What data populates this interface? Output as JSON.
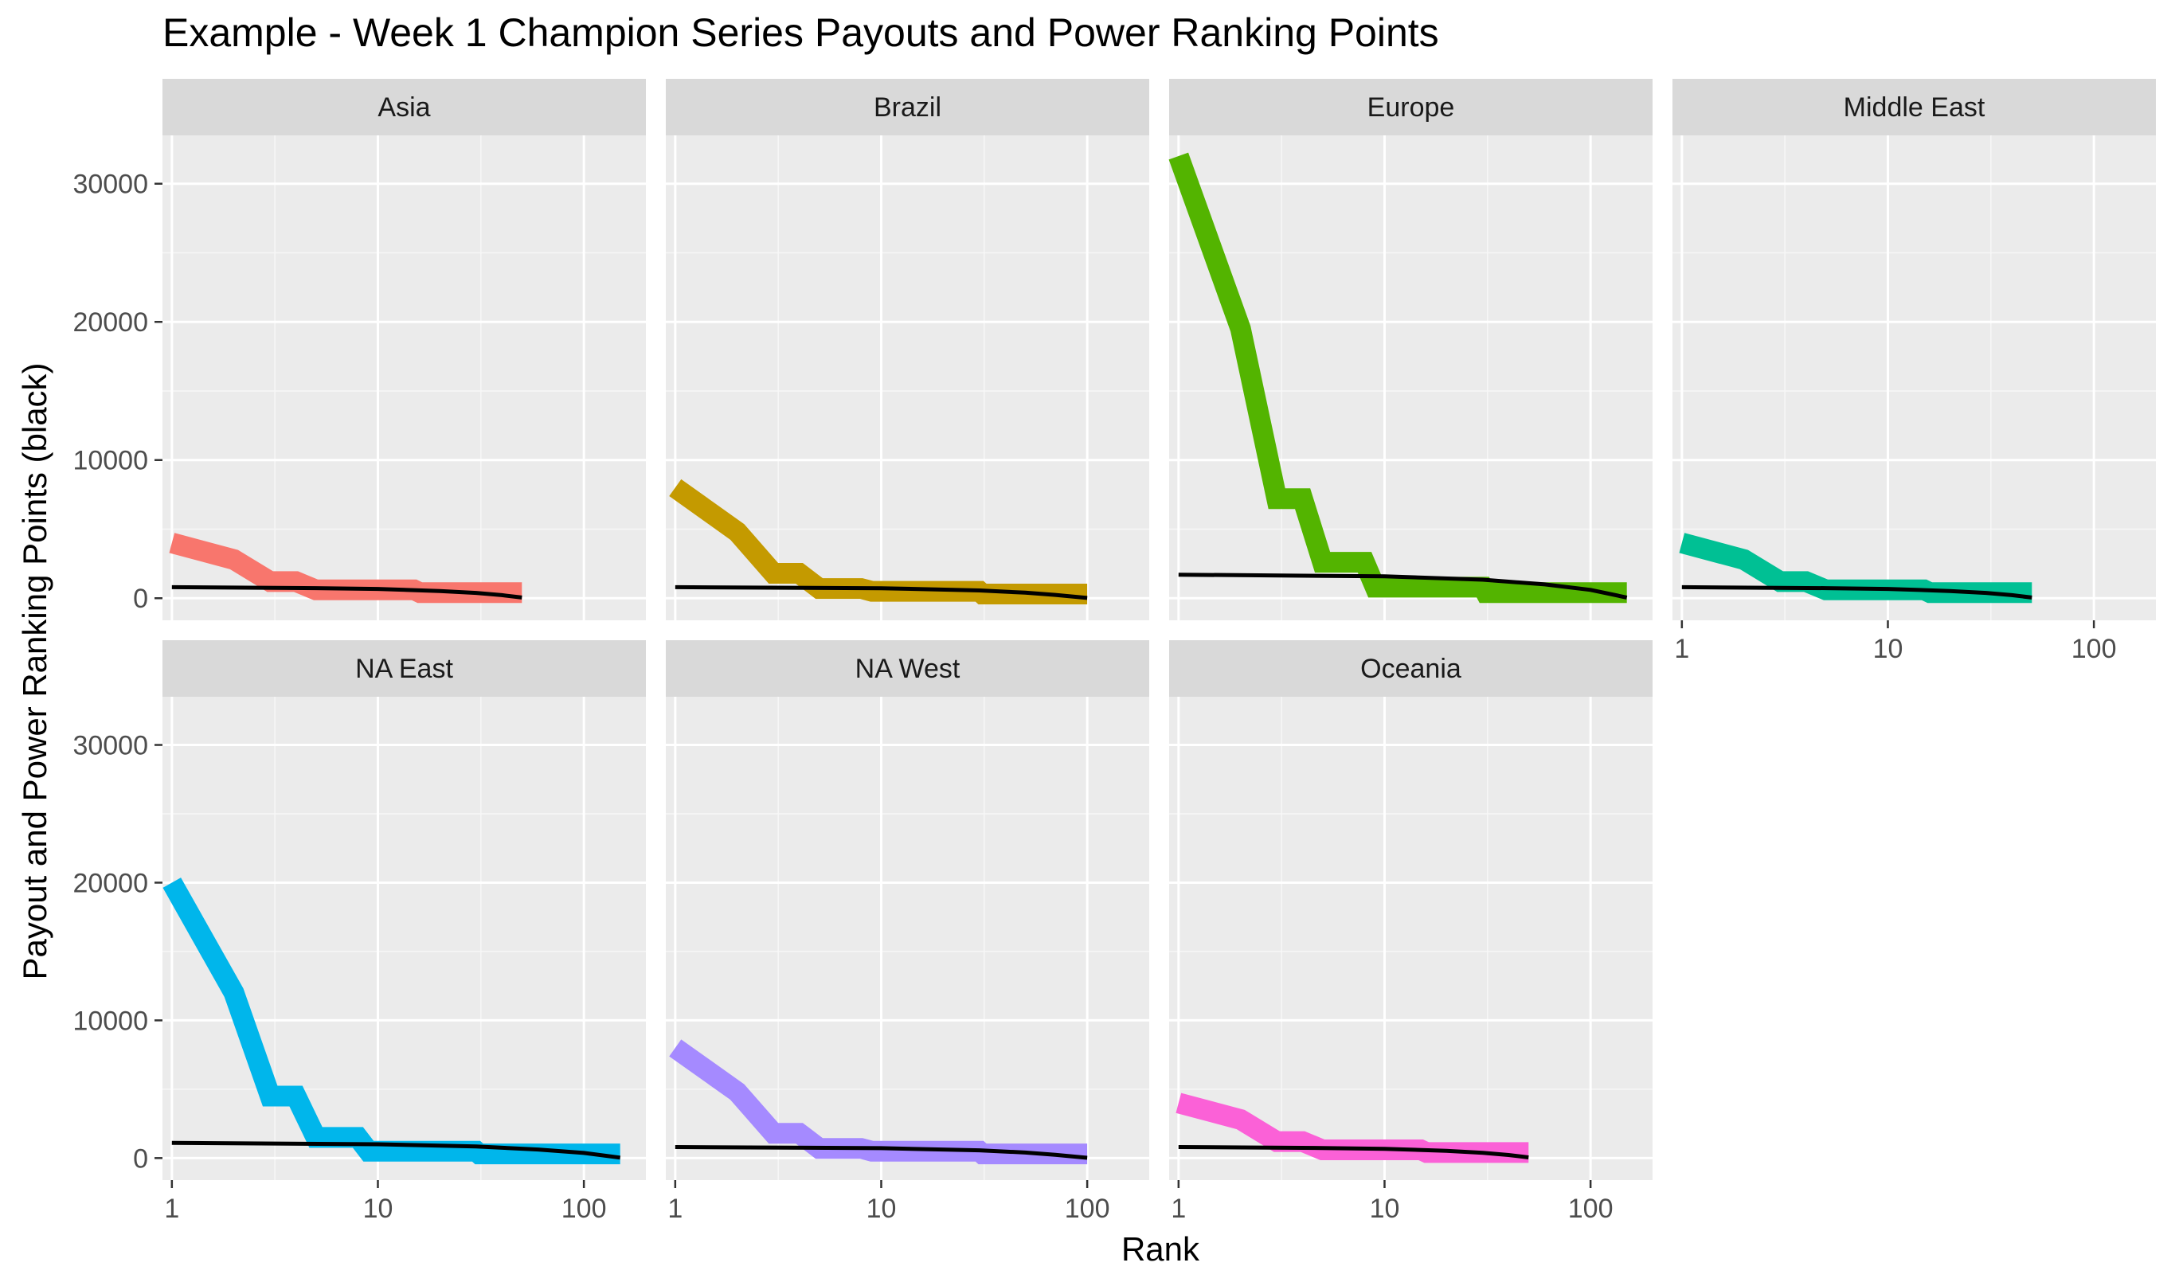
{
  "chart_data": {
    "type": "line",
    "title": "Example - Week 1 Champion Series Payouts and Power Ranking Points",
    "xlabel": "Rank",
    "ylabel": "Payout and Power Ranking Points (black)",
    "x_scale": "log10",
    "xlim": [
      0.9,
      200
    ],
    "ylim": [
      -1600,
      33500
    ],
    "x_ticks": [
      1,
      10,
      100
    ],
    "x_tick_labels": [
      "1",
      "10",
      "100"
    ],
    "y_ticks": [
      0,
      10000,
      20000,
      30000
    ],
    "y_tick_labels": [
      "0",
      "10000",
      "20000",
      "30000"
    ],
    "grid": true,
    "legend": "none",
    "points_series_color": "#000000",
    "panels": [
      {
        "name": "Asia",
        "color": "#F8766D",
        "payout": [
          [
            1,
            4000
          ],
          [
            2,
            2800
          ],
          [
            3,
            1200
          ],
          [
            4,
            1200
          ],
          [
            5,
            600
          ],
          [
            15,
            600
          ],
          [
            16,
            400
          ],
          [
            50,
            400
          ]
        ],
        "points": [
          [
            1,
            800
          ],
          [
            5,
            730
          ],
          [
            10,
            670
          ],
          [
            20,
            520
          ],
          [
            30,
            380
          ],
          [
            40,
            220
          ],
          [
            50,
            50
          ]
        ]
      },
      {
        "name": "Brazil",
        "color": "#C49A00",
        "payout": [
          [
            1,
            8000
          ],
          [
            2,
            4800
          ],
          [
            3,
            1800
          ],
          [
            4,
            1800
          ],
          [
            5,
            700
          ],
          [
            8,
            700
          ],
          [
            9,
            500
          ],
          [
            30,
            500
          ],
          [
            31,
            300
          ],
          [
            100,
            300
          ]
        ],
        "points": [
          [
            1,
            800
          ],
          [
            10,
            720
          ],
          [
            30,
            560
          ],
          [
            50,
            400
          ],
          [
            70,
            240
          ],
          [
            100,
            20
          ]
        ]
      },
      {
        "name": "Europe",
        "color": "#53B400",
        "payout": [
          [
            1,
            32000
          ],
          [
            2,
            19500
          ],
          [
            3,
            7200
          ],
          [
            4,
            7200
          ],
          [
            5,
            2600
          ],
          [
            8,
            2600
          ],
          [
            9,
            800
          ],
          [
            30,
            800
          ],
          [
            31,
            400
          ],
          [
            150,
            400
          ]
        ],
        "points": [
          [
            1,
            1700
          ],
          [
            10,
            1580
          ],
          [
            30,
            1340
          ],
          [
            60,
            1000
          ],
          [
            100,
            600
          ],
          [
            150,
            50
          ]
        ]
      },
      {
        "name": "Middle East",
        "color": "#00C094",
        "payout": [
          [
            1,
            4000
          ],
          [
            2,
            2800
          ],
          [
            3,
            1200
          ],
          [
            4,
            1200
          ],
          [
            5,
            600
          ],
          [
            15,
            600
          ],
          [
            16,
            400
          ],
          [
            50,
            400
          ]
        ],
        "points": [
          [
            1,
            800
          ],
          [
            5,
            730
          ],
          [
            10,
            670
          ],
          [
            20,
            520
          ],
          [
            30,
            380
          ],
          [
            40,
            220
          ],
          [
            50,
            50
          ]
        ]
      },
      {
        "name": "NA East",
        "color": "#00B6EB",
        "payout": [
          [
            1,
            20000
          ],
          [
            2,
            12000
          ],
          [
            3,
            4500
          ],
          [
            4,
            4500
          ],
          [
            5,
            1500
          ],
          [
            8,
            1500
          ],
          [
            9,
            500
          ],
          [
            30,
            500
          ],
          [
            31,
            300
          ],
          [
            150,
            300
          ]
        ],
        "points": [
          [
            1,
            1100
          ],
          [
            10,
            1000
          ],
          [
            30,
            840
          ],
          [
            60,
            620
          ],
          [
            100,
            370
          ],
          [
            150,
            30
          ]
        ]
      },
      {
        "name": "NA West",
        "color": "#A58AFF",
        "payout": [
          [
            1,
            8000
          ],
          [
            2,
            4800
          ],
          [
            3,
            1800
          ],
          [
            4,
            1800
          ],
          [
            5,
            700
          ],
          [
            8,
            700
          ],
          [
            9,
            500
          ],
          [
            30,
            500
          ],
          [
            31,
            300
          ],
          [
            100,
            300
          ]
        ],
        "points": [
          [
            1,
            800
          ],
          [
            10,
            720
          ],
          [
            30,
            560
          ],
          [
            50,
            400
          ],
          [
            70,
            240
          ],
          [
            100,
            20
          ]
        ]
      },
      {
        "name": "Oceania",
        "color": "#FB61D7",
        "payout": [
          [
            1,
            4000
          ],
          [
            2,
            2800
          ],
          [
            3,
            1200
          ],
          [
            4,
            1200
          ],
          [
            5,
            600
          ],
          [
            15,
            600
          ],
          [
            16,
            400
          ],
          [
            50,
            400
          ]
        ],
        "points": [
          [
            1,
            800
          ],
          [
            5,
            730
          ],
          [
            10,
            670
          ],
          [
            20,
            520
          ],
          [
            30,
            380
          ],
          [
            40,
            220
          ],
          [
            50,
            50
          ]
        ]
      }
    ]
  }
}
